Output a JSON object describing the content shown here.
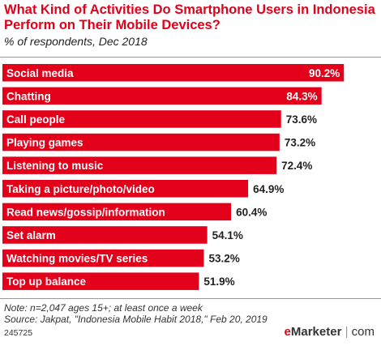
{
  "header": {
    "title": "What Kind of Activities Do Smartphone Users in Indonesia Perform on Their Mobile Devices?",
    "subtitle": "% of respondents, Dec 2018"
  },
  "chart_data": {
    "type": "bar",
    "orientation": "horizontal",
    "categories": [
      "Social media",
      "Chatting",
      "Call people",
      "Playing games",
      "Listening to music",
      "Taking a picture/photo/video",
      "Read news/gossip/information",
      "Set alarm",
      "Watching movies/TV series",
      "Top up balance"
    ],
    "values": [
      90.2,
      84.3,
      73.6,
      73.2,
      72.4,
      64.9,
      60.4,
      54.1,
      53.2,
      51.9
    ],
    "value_labels": [
      "90.2%",
      "84.3%",
      "73.6%",
      "73.2%",
      "72.4%",
      "64.9%",
      "60.4%",
      "54.1%",
      "53.2%",
      "51.9%"
    ],
    "xlim": [
      0,
      100
    ],
    "grid": false,
    "bar_color": "#e2001a"
  },
  "footer": {
    "note": "Note: n=2,047 ages 15+; at least once a week",
    "source": "Source: Jakpat, \"Indonesia Mobile Habit 2018,\" Feb 20, 2019",
    "chart_id": "245725",
    "brand_e": "e",
    "brand_rest": "Marketer",
    "brand_sep": " | ",
    "brand_com": "com"
  }
}
